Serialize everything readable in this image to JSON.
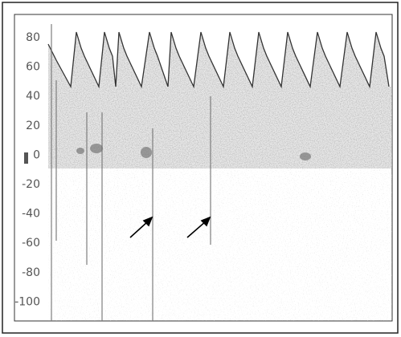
{
  "axis_labels": [
    "80",
    "60",
    "40",
    "20",
    "0",
    "-20",
    "-40",
    "-60",
    "-80",
    "-100"
  ]
}
